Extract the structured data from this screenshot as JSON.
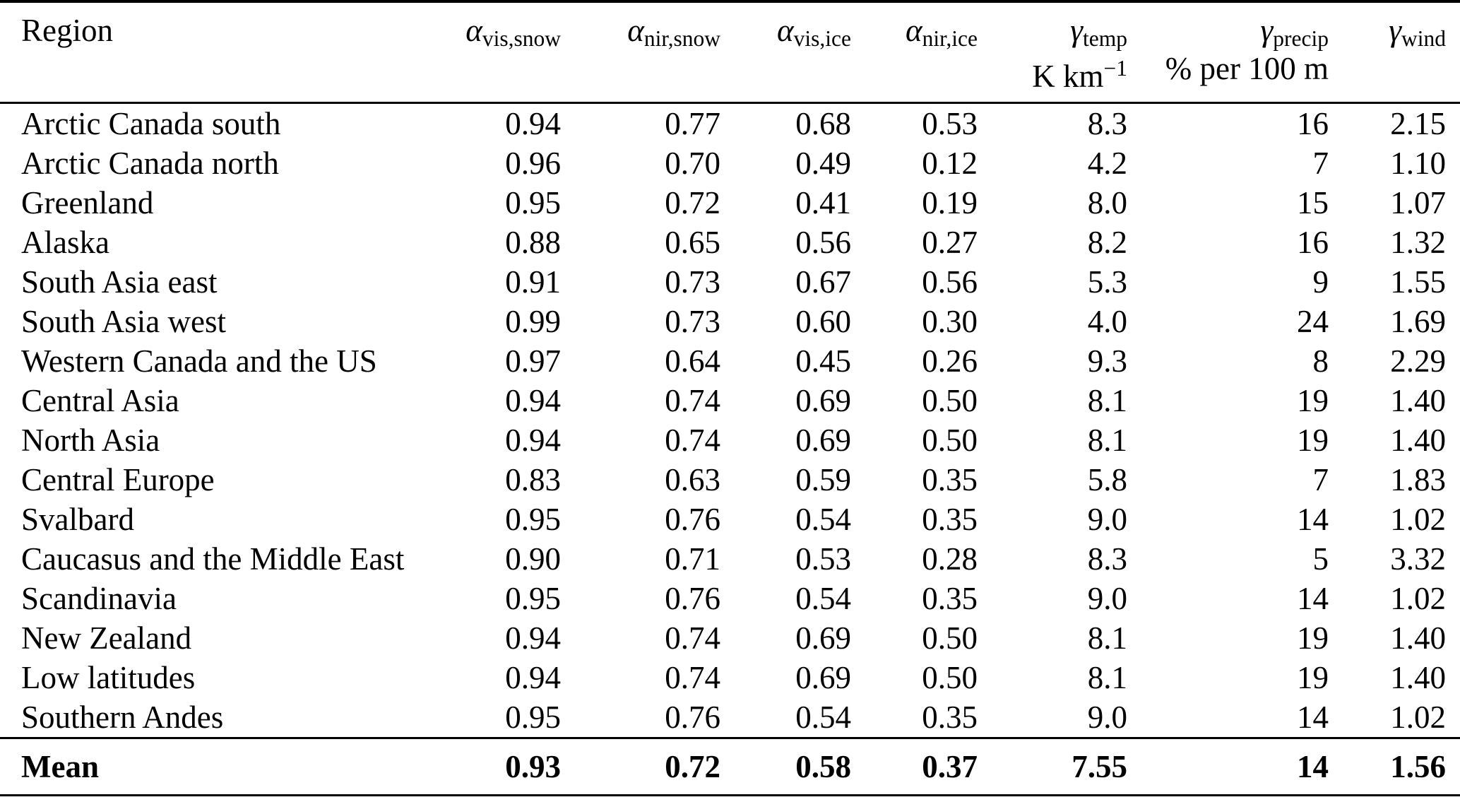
{
  "table": {
    "columns": [
      {
        "label": "Region",
        "sub": "",
        "unit_base": "",
        "unit_sup": ""
      },
      {
        "label": "α",
        "sub": "vis,snow",
        "unit_base": "",
        "unit_sup": ""
      },
      {
        "label": "α",
        "sub": "nir,snow",
        "unit_base": "",
        "unit_sup": ""
      },
      {
        "label": "α",
        "sub": "vis,ice",
        "unit_base": "",
        "unit_sup": ""
      },
      {
        "label": "α",
        "sub": "nir,ice",
        "unit_base": "",
        "unit_sup": ""
      },
      {
        "label": "γ",
        "sub": "temp",
        "unit_base": "K km",
        "unit_sup": "−1"
      },
      {
        "label": "γ",
        "sub": "precip",
        "unit_base": "% per 100 m",
        "unit_sup": ""
      },
      {
        "label": "γ",
        "sub": "wind",
        "unit_base": "",
        "unit_sup": ""
      }
    ],
    "rows": [
      {
        "region": "Arctic Canada south",
        "values": [
          "0.94",
          "0.77",
          "0.68",
          "0.53",
          "8.3",
          "16",
          "2.15"
        ]
      },
      {
        "region": "Arctic Canada north",
        "values": [
          "0.96",
          "0.70",
          "0.49",
          "0.12",
          "4.2",
          "7",
          "1.10"
        ]
      },
      {
        "region": "Greenland",
        "values": [
          "0.95",
          "0.72",
          "0.41",
          "0.19",
          "8.0",
          "15",
          "1.07"
        ]
      },
      {
        "region": "Alaska",
        "values": [
          "0.88",
          "0.65",
          "0.56",
          "0.27",
          "8.2",
          "16",
          "1.32"
        ]
      },
      {
        "region": "South Asia east",
        "values": [
          "0.91",
          "0.73",
          "0.67",
          "0.56",
          "5.3",
          "9",
          "1.55"
        ]
      },
      {
        "region": "South Asia west",
        "values": [
          "0.99",
          "0.73",
          "0.60",
          "0.30",
          "4.0",
          "24",
          "1.69"
        ]
      },
      {
        "region": "Western Canada and the US",
        "values": [
          "0.97",
          "0.64",
          "0.45",
          "0.26",
          "9.3",
          "8",
          "2.29"
        ]
      },
      {
        "region": "Central Asia",
        "values": [
          "0.94",
          "0.74",
          "0.69",
          "0.50",
          "8.1",
          "19",
          "1.40"
        ]
      },
      {
        "region": "North Asia",
        "values": [
          "0.94",
          "0.74",
          "0.69",
          "0.50",
          "8.1",
          "19",
          "1.40"
        ]
      },
      {
        "region": "Central Europe",
        "values": [
          "0.83",
          "0.63",
          "0.59",
          "0.35",
          "5.8",
          "7",
          "1.83"
        ]
      },
      {
        "region": "Svalbard",
        "values": [
          "0.95",
          "0.76",
          "0.54",
          "0.35",
          "9.0",
          "14",
          "1.02"
        ]
      },
      {
        "region": "Caucasus and the Middle East",
        "values": [
          "0.90",
          "0.71",
          "0.53",
          "0.28",
          "8.3",
          "5",
          "3.32"
        ]
      },
      {
        "region": "Scandinavia",
        "values": [
          "0.95",
          "0.76",
          "0.54",
          "0.35",
          "9.0",
          "14",
          "1.02"
        ]
      },
      {
        "region": "New Zealand",
        "values": [
          "0.94",
          "0.74",
          "0.69",
          "0.50",
          "8.1",
          "19",
          "1.40"
        ]
      },
      {
        "region": "Low latitudes",
        "values": [
          "0.94",
          "0.74",
          "0.69",
          "0.50",
          "8.1",
          "19",
          "1.40"
        ]
      },
      {
        "region": "Southern Andes",
        "values": [
          "0.95",
          "0.76",
          "0.54",
          "0.35",
          "9.0",
          "14",
          "1.02"
        ]
      }
    ],
    "footer": {
      "region": "Mean",
      "values": [
        "0.93",
        "0.72",
        "0.58",
        "0.37",
        "7.55",
        "14",
        "1.56"
      ]
    }
  }
}
